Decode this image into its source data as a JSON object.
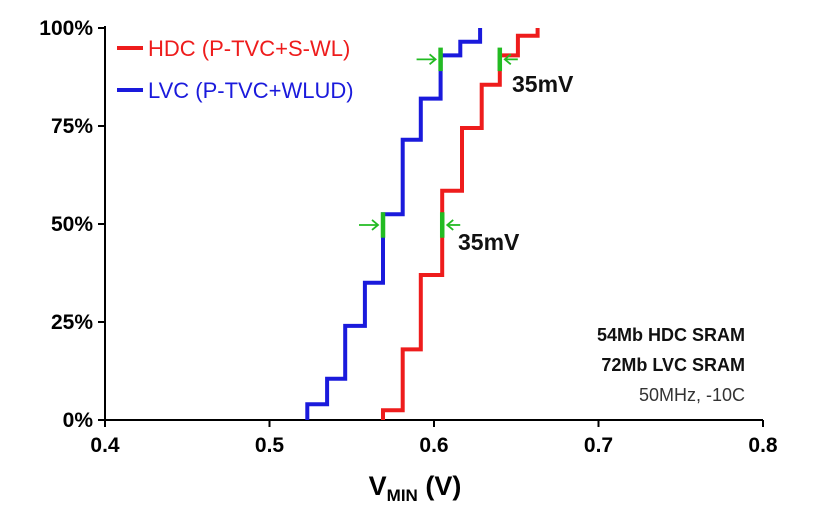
{
  "chart_data": {
    "type": "line",
    "xlabel": {
      "main": "V",
      "sub": "MIN",
      "rest": " (V)"
    },
    "xlim": [
      0.4,
      0.8
    ],
    "ylim": [
      0,
      100
    ],
    "x_ticks": [
      "0.4",
      "0.5",
      "0.6",
      "0.7",
      "0.8"
    ],
    "x_tick_values": [
      0.4,
      0.5,
      0.6,
      0.7,
      0.8
    ],
    "y_ticks": [
      "0%",
      "25%",
      "50%",
      "75%",
      "100%"
    ],
    "y_tick_values": [
      0,
      25,
      50,
      75,
      100
    ],
    "grid": false,
    "legend_placement": "top-left",
    "series": [
      {
        "name": "HDC (P-TVC+S-WL)",
        "color": "#ee1c1c",
        "step_points": [
          [
            0.569,
            0
          ],
          [
            0.569,
            2.5
          ],
          [
            0.581,
            2.5
          ],
          [
            0.581,
            18
          ],
          [
            0.592,
            18
          ],
          [
            0.592,
            37
          ],
          [
            0.605,
            37
          ],
          [
            0.605,
            58.5
          ],
          [
            0.617,
            58.5
          ],
          [
            0.617,
            74.5
          ],
          [
            0.629,
            74.5
          ],
          [
            0.629,
            85.5
          ],
          [
            0.64,
            85.5
          ],
          [
            0.64,
            93
          ],
          [
            0.651,
            93
          ],
          [
            0.651,
            98
          ],
          [
            0.663,
            98
          ],
          [
            0.663,
            100
          ]
        ]
      },
      {
        "name": "LVC (P-TVC+WLUD)",
        "color": "#1a1adc",
        "step_points": [
          [
            0.523,
            0
          ],
          [
            0.523,
            4
          ],
          [
            0.535,
            4
          ],
          [
            0.535,
            10.5
          ],
          [
            0.546,
            10.5
          ],
          [
            0.546,
            24
          ],
          [
            0.558,
            24
          ],
          [
            0.558,
            35
          ],
          [
            0.569,
            35
          ],
          [
            0.569,
            52.5
          ],
          [
            0.581,
            52.5
          ],
          [
            0.581,
            71.5
          ],
          [
            0.592,
            71.5
          ],
          [
            0.592,
            82
          ],
          [
            0.604,
            82
          ],
          [
            0.604,
            93
          ],
          [
            0.616,
            93
          ],
          [
            0.616,
            96.5
          ],
          [
            0.628,
            96.5
          ],
          [
            0.628,
            100
          ]
        ]
      }
    ],
    "annotations": [
      {
        "label": "35mV",
        "level_from": 46.5,
        "level_to": 53,
        "left_x": 0.569,
        "right_x": 0.605,
        "color": "#22bb22"
      },
      {
        "label": "35mV",
        "level_from": 89,
        "level_to": 95,
        "left_x": 0.604,
        "right_x": 0.64,
        "color": "#22bb22"
      }
    ],
    "notes": [
      "54Mb HDC SRAM",
      "72Mb LVC SRAM",
      "50MHz, -10C"
    ]
  }
}
